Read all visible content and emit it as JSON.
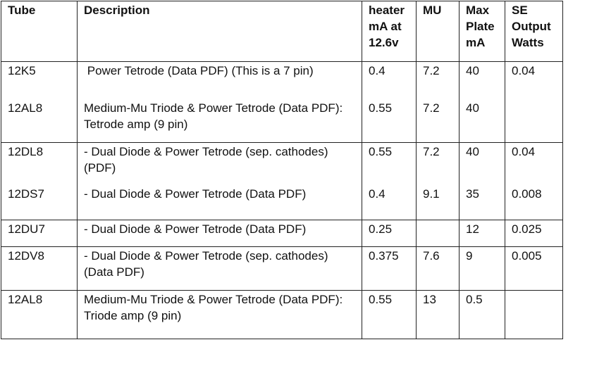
{
  "headers": [
    "Tube",
    "Description",
    "heater mA at 12.6v",
    "MU",
    "Max Plate mA",
    "SE Output Watts"
  ],
  "rows": [
    {
      "tube": "12K5",
      "description": " Power Tetrode (Data PDF) (This is a 7 pin)",
      "heater": "0.4",
      "mu": "7.2",
      "max_plate": "40",
      "se_watts": "0.04"
    },
    {
      "tube": "12AL8",
      "description": "Medium-Mu Triode & Power Tetrode (Data PDF): Tetrode amp (9 pin)",
      "heater": "0.55",
      "mu": "7.2",
      "max_plate": "40",
      "se_watts": ""
    },
    {
      "tube": "12DL8",
      "description": "- Dual Diode & Power Tetrode (sep. cathodes) (PDF)",
      "heater": "0.55",
      "mu": "7.2",
      "max_plate": "40",
      "se_watts": "0.04"
    },
    {
      "tube": "12DS7",
      "description": "- Dual Diode & Power Tetrode (Data PDF)",
      "heater": "0.4",
      "mu": "9.1",
      "max_plate": "35",
      "se_watts": "0.008"
    },
    {
      "tube": "12DU7",
      "description": "- Dual Diode & Power Tetrode (Data PDF)",
      "heater": "0.25",
      "mu": "",
      "max_plate": "12",
      "se_watts": "0.025"
    },
    {
      "tube": "12DV8",
      "description": "- Dual Diode & Power Tetrode (sep. cathodes) (Data PDF)",
      "heater": "0.375",
      "mu": "7.6",
      "max_plate": "9",
      "se_watts": "0.005"
    },
    {
      "tube": "12AL8",
      "description": "Medium-Mu Triode & Power Tetrode (Data PDF): Triode amp (9 pin)",
      "heater": "0.55",
      "mu": "13",
      "max_plate": "0.5",
      "se_watts": ""
    }
  ]
}
